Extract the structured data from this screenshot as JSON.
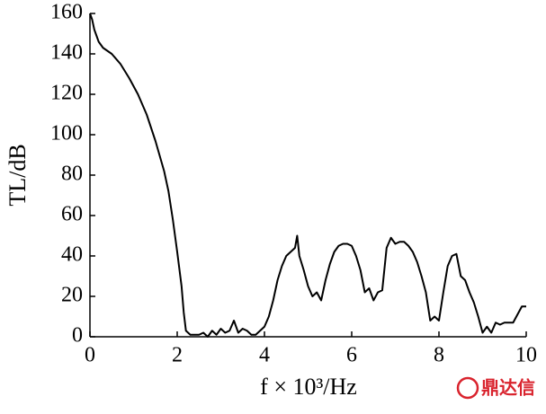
{
  "chart_data": {
    "type": "line",
    "x_label": "f × 10³/Hz",
    "y_label": "TL/dB",
    "watermark": "鼎达信",
    "x": [
      0,
      0.05,
      0.1,
      0.2,
      0.3,
      0.5,
      0.7,
      0.9,
      1.1,
      1.3,
      1.5,
      1.7,
      1.8,
      1.9,
      2.0,
      2.1,
      2.15,
      2.2,
      2.3,
      2.5,
      2.6,
      2.7,
      2.8,
      2.9,
      3.0,
      3.1,
      3.2,
      3.3,
      3.4,
      3.5,
      3.6,
      3.7,
      3.8,
      3.9,
      4.0,
      4.1,
      4.2,
      4.3,
      4.4,
      4.5,
      4.6,
      4.7,
      4.75,
      4.8,
      4.9,
      5.0,
      5.1,
      5.2,
      5.3,
      5.4,
      5.5,
      5.6,
      5.7,
      5.8,
      5.9,
      6.0,
      6.1,
      6.2,
      6.3,
      6.4,
      6.5,
      6.6,
      6.7,
      6.8,
      6.9,
      7.0,
      7.1,
      7.2,
      7.3,
      7.4,
      7.5,
      7.6,
      7.7,
      7.8,
      7.9,
      8.0,
      8.1,
      8.2,
      8.3,
      8.4,
      8.5,
      8.6,
      8.7,
      8.8,
      8.9,
      9.0,
      9.1,
      9.2,
      9.3,
      9.4,
      9.5,
      9.6,
      9.7,
      9.8,
      9.9,
      10.0
    ],
    "values": [
      160,
      157,
      152,
      146,
      143,
      140,
      135,
      128,
      120,
      110,
      97,
      82,
      72,
      58,
      42,
      25,
      12,
      3,
      1,
      1,
      2,
      0,
      3,
      1,
      4,
      2,
      3,
      8,
      2,
      4,
      3,
      1,
      1,
      3,
      5,
      10,
      18,
      28,
      35,
      40,
      42,
      44,
      50,
      40,
      33,
      25,
      20,
      22,
      18,
      28,
      36,
      42,
      45,
      46,
      46,
      45,
      40,
      33,
      22,
      24,
      18,
      22,
      23,
      44,
      49,
      46,
      47,
      47,
      45,
      42,
      37,
      30,
      22,
      8,
      10,
      8,
      22,
      35,
      40,
      41,
      30,
      28,
      22,
      17,
      10,
      2,
      5,
      2,
      7,
      6,
      7,
      7,
      7,
      11,
      15,
      15
    ],
    "color": "#000000",
    "xlim": [
      0,
      10
    ],
    "xticks": [
      0,
      2,
      4,
      6,
      8,
      10
    ],
    "ylim": [
      0,
      160
    ],
    "yticks": [
      0,
      20,
      40,
      60,
      80,
      100,
      120,
      140,
      160
    ]
  }
}
